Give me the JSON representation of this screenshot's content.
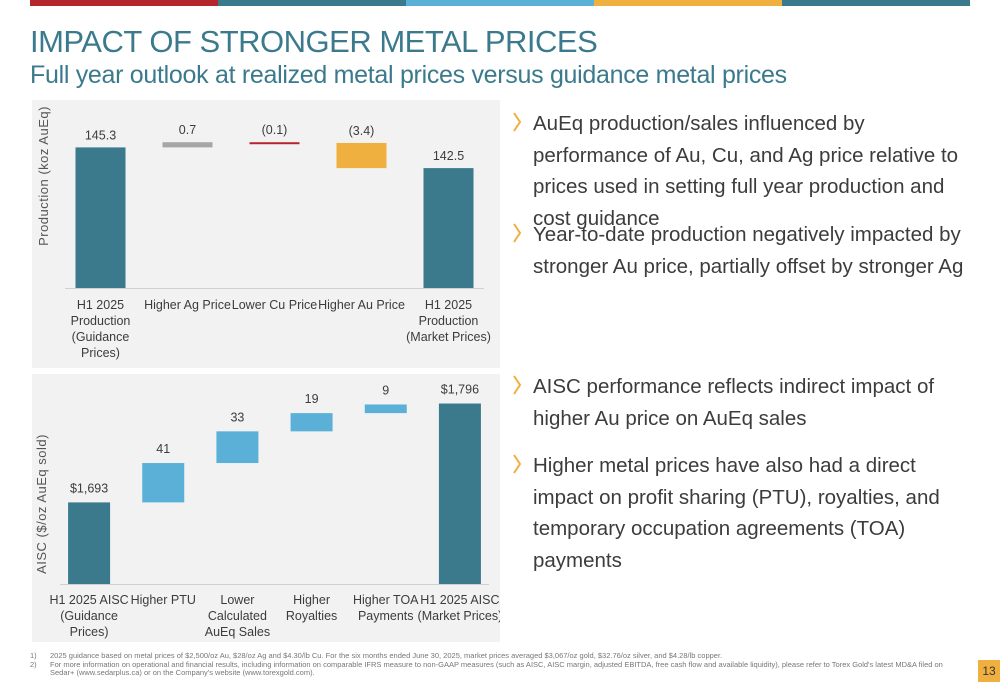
{
  "top_bar_colors": [
    "#b5262c",
    "#3b7a8c",
    "#5bb0d8",
    "#f0b040",
    "#3b7a8c"
  ],
  "header": {
    "title": "IMPACT OF STRONGER METAL PRICES",
    "subtitle": "Full year outlook at realized metal prices versus guidance metal prices"
  },
  "chart_data": [
    {
      "type": "bar",
      "subtype": "waterfall",
      "ylabel": "Production (koz AuEq)",
      "categories": [
        [
          "H1 2025",
          "Production",
          "(Guidance",
          "Prices)"
        ],
        [
          "Higher Ag Price"
        ],
        [
          "Lower Cu Price"
        ],
        [
          "Higher Au Price"
        ],
        [
          "H1 2025",
          "Production",
          "(Market Prices)"
        ]
      ],
      "values": [
        145.3,
        0.7,
        -0.1,
        -3.4,
        142.5
      ],
      "data_labels": [
        "145.3",
        "0.7",
        "(0.1)",
        "(3.4)",
        "142.5"
      ],
      "bar_kinds": [
        "total",
        "delta",
        "delta",
        "delta",
        "total"
      ],
      "colors": [
        "#3b7a8c",
        "#a6a6a6",
        "#b5262c",
        "#f0b040",
        "#3b7a8c"
      ],
      "grid": false,
      "legend": "none"
    },
    {
      "type": "bar",
      "subtype": "waterfall",
      "ylabel": "AISC ($/oz AuEq sold)",
      "categories": [
        [
          "H1 2025 AISC",
          "(Guidance",
          "Prices)"
        ],
        [
          "Higher PTU"
        ],
        [
          "Lower",
          "Calculated",
          "AuEq Sales"
        ],
        [
          "Higher",
          "Royalties"
        ],
        [
          "Higher TOA",
          "Payments"
        ],
        [
          "H1 2025 AISC",
          "(Market Prices)"
        ]
      ],
      "values": [
        1693,
        41,
        33,
        19,
        9,
        1796
      ],
      "data_labels": [
        "$1,693",
        "41",
        "33",
        "19",
        "9",
        "$1,796"
      ],
      "bar_kinds": [
        "total",
        "delta",
        "delta",
        "delta",
        "delta",
        "total"
      ],
      "colors": [
        "#3b7a8c",
        "#5bb0d8",
        "#5bb0d8",
        "#5bb0d8",
        "#5bb0d8",
        "#3b7a8c"
      ],
      "grid": false,
      "legend": "none"
    }
  ],
  "bullets": [
    "AuEq production/sales influenced by performance of Au, Cu, and Ag price relative to prices used in setting full year production and cost guidance",
    "Year-to-date production negatively impacted by stronger Au price, partially offset by stronger Ag",
    "AISC performance reflects indirect impact of higher Au price on AuEq sales",
    "Higher metal prices have also had a direct impact on profit sharing (PTU), royalties, and temporary occupation agreements (TOA) payments"
  ],
  "bullet_color": "#f0b040",
  "footnotes": [
    {
      "num": "1)",
      "text": "2025 guidance based on metal prices of $2,500/oz Au, $28/oz Ag and $4.30/lb Cu. For the six months ended June 30, 2025, market prices averaged $3,067/oz gold, $32.76/oz silver, and $4.28/lb copper."
    },
    {
      "num": "2)",
      "text": "For more information on operational and financial results, including information on comparable IFRS measure to non-GAAP measures (such as AISC, AISC margin, adjusted EBITDA, free cash flow and available liquidity), please refer to Torex Gold's latest MD&A filed on Sedar+ (www.sedarplus.ca) or on the Company's website (www.torexgold.com)."
    }
  ],
  "page_number": "13"
}
